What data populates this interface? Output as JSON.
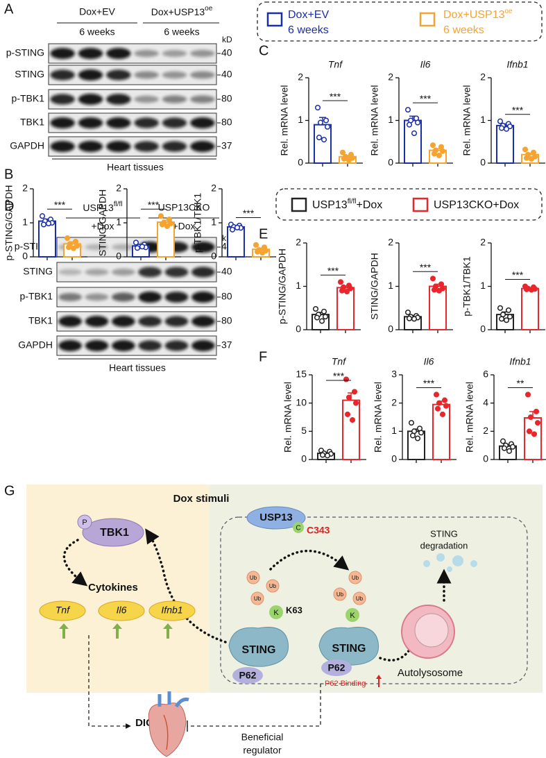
{
  "panel_labels": [
    "A",
    "B",
    "C",
    "D",
    "E",
    "F",
    "G"
  ],
  "blot_a": {
    "groups": [
      {
        "name": "Dox+EV",
        "sub": "6 weeks"
      },
      {
        "name": "Dox+USP13",
        "sup": "oe",
        "sub": "6 weeks"
      }
    ],
    "unit": "kD",
    "rows": [
      {
        "label": "p-STING",
        "kd": 40
      },
      {
        "label": "STING",
        "kd": 40
      },
      {
        "label": "p-TBK1",
        "kd": 80
      },
      {
        "label": "TBK1",
        "kd": 80
      },
      {
        "label": "GAPDH",
        "kd": 37
      }
    ],
    "tissue": "Heart tissues"
  },
  "blot_d": {
    "groups": [
      {
        "name": "USP13",
        "sup": "fl/fl",
        "sub": "+Dox"
      },
      {
        "name": "USP13CKO",
        "sub": "+Dox"
      }
    ],
    "unit": "kD",
    "rows": [
      {
        "label": "p-STING",
        "kd": 40
      },
      {
        "label": "STING",
        "kd": 40
      },
      {
        "label": "p-TBK1",
        "kd": 80
      },
      {
        "label": "TBK1",
        "kd": 80
      },
      {
        "label": "GAPDH",
        "kd": 37
      }
    ],
    "tissue": "Heart tissues"
  },
  "legend_c": [
    {
      "name": "Dox+EV",
      "sub": "6 weeks",
      "color": "#1a2ea8"
    },
    {
      "name": "Dox+USP13",
      "sup": "oe",
      "sub": "6 weeks",
      "color": "#f5a431"
    }
  ],
  "legend_e": [
    {
      "name": "USP13",
      "sup": "fl/fl",
      "tail": "+Dox",
      "color": "#222222"
    },
    {
      "name": "USP13CKO+Dox",
      "color": "#e8262b"
    }
  ],
  "chart_data": [
    {
      "type": "bar",
      "ylabel": "p-STING/GAPDH",
      "categories": [
        null,
        null
      ],
      "values": [
        1.05,
        0.38
      ],
      "errors": [
        0.06,
        0.06
      ],
      "points": [
        [
          1.2,
          1.1,
          1.05,
          1.0,
          0.95,
          0.98
        ],
        [
          0.55,
          0.45,
          0.38,
          0.32,
          0.28,
          0.25
        ]
      ],
      "colors": [
        "#1a2ea8",
        "#f5a431"
      ],
      "ylim": [
        0,
        2
      ],
      "yticks": [
        0,
        1,
        2
      ],
      "significance": "***"
    },
    {
      "type": "bar",
      "ylabel": "STING/GAPDH",
      "categories": [
        null,
        null
      ],
      "values": [
        0.32,
        1.02
      ],
      "errors": [
        0.04,
        0.06
      ],
      "points": [
        [
          0.42,
          0.36,
          0.3,
          0.28,
          0.26,
          0.3
        ],
        [
          1.2,
          1.1,
          1.0,
          0.98,
          0.95,
          0.9
        ]
      ],
      "colors": [
        "#1a2ea8",
        "#f5a431"
      ],
      "ylim": [
        0,
        2
      ],
      "yticks": [
        0,
        1,
        2
      ],
      "significance": "***"
    },
    {
      "type": "bar",
      "ylabel": "p-TBK1/TBK1",
      "categories": [
        null,
        null
      ],
      "values": [
        0.88,
        0.22
      ],
      "errors": [
        0.04,
        0.04
      ],
      "points": [
        [
          0.95,
          0.92,
          0.88,
          0.85,
          0.8,
          0.86
        ],
        [
          0.35,
          0.28,
          0.2,
          0.18,
          0.15,
          0.12
        ]
      ],
      "colors": [
        "#1a2ea8",
        "#f5a431"
      ],
      "ylim": [
        0,
        2
      ],
      "yticks": [
        0,
        1,
        2
      ],
      "significance": "***"
    },
    {
      "type": "bar",
      "title": "Tnf",
      "ylabel": "Rel. mRNA level",
      "categories": [
        null,
        null
      ],
      "values": [
        0.9,
        0.15
      ],
      "errors": [
        0.17,
        0.03
      ],
      "points": [
        [
          1.3,
          1.0,
          0.95,
          0.85,
          0.6,
          0.55
        ],
        [
          0.25,
          0.2,
          0.15,
          0.12,
          0.1,
          0.07
        ]
      ],
      "colors": [
        "#1a2ea8",
        "#f5a431"
      ],
      "ylim": [
        0,
        2
      ],
      "yticks": [
        0,
        1,
        2
      ],
      "significance": "***"
    },
    {
      "type": "bar",
      "title": "Il6",
      "ylabel": "Rel. mRNA level",
      "categories": [
        null,
        null
      ],
      "values": [
        1.0,
        0.3
      ],
      "errors": [
        0.1,
        0.04
      ],
      "points": [
        [
          1.25,
          1.05,
          1.0,
          0.95,
          0.9,
          0.7
        ],
        [
          0.42,
          0.38,
          0.3,
          0.28,
          0.22,
          0.18
        ]
      ],
      "colors": [
        "#1a2ea8",
        "#f5a431"
      ],
      "ylim": [
        0,
        2
      ],
      "yticks": [
        0,
        1,
        2
      ],
      "significance": "***"
    },
    {
      "type": "bar",
      "title": "Ifnb1",
      "ylabel": "Rel. mRNA level",
      "categories": [
        null,
        null
      ],
      "values": [
        0.88,
        0.2
      ],
      "errors": [
        0.04,
        0.03
      ],
      "points": [
        [
          0.98,
          0.92,
          0.88,
          0.86,
          0.82,
          0.8
        ],
        [
          0.32,
          0.25,
          0.2,
          0.15,
          0.12,
          0.1
        ]
      ],
      "colors": [
        "#1a2ea8",
        "#f5a431"
      ],
      "ylim": [
        0,
        2
      ],
      "yticks": [
        0,
        1,
        2
      ],
      "significance": "***"
    },
    {
      "type": "bar",
      "ylabel": "p-STING/GAPDH",
      "categories": [
        null,
        null
      ],
      "values": [
        0.35,
        0.97
      ],
      "errors": [
        0.05,
        0.04
      ],
      "points": [
        [
          0.48,
          0.42,
          0.35,
          0.3,
          0.28,
          0.2
        ],
        [
          1.1,
          1.02,
          0.98,
          0.95,
          0.9,
          0.88
        ]
      ],
      "colors": [
        "#222222",
        "#e8262b"
      ],
      "ylim": [
        0,
        2
      ],
      "yticks": [
        0,
        1,
        2
      ],
      "significance": "***"
    },
    {
      "type": "bar",
      "ylabel": "STING/GAPDH",
      "categories": [
        null,
        null
      ],
      "values": [
        0.3,
        1.0
      ],
      "errors": [
        0.03,
        0.05
      ],
      "points": [
        [
          0.4,
          0.32,
          0.3,
          0.28,
          0.26,
          0.25
        ],
        [
          1.18,
          1.05,
          1.0,
          0.95,
          0.92,
          0.9
        ]
      ],
      "colors": [
        "#222222",
        "#e8262b"
      ],
      "ylim": [
        0,
        2
      ],
      "yticks": [
        0,
        1,
        2
      ],
      "significance": "***"
    },
    {
      "type": "bar",
      "ylabel": "p-TBK1/TBK1",
      "categories": [
        null,
        null
      ],
      "values": [
        0.35,
        0.95
      ],
      "errors": [
        0.06,
        0.02
      ],
      "points": [
        [
          0.5,
          0.45,
          0.35,
          0.3,
          0.25,
          0.22
        ],
        [
          1.0,
          0.98,
          0.95,
          0.94,
          0.93,
          0.92
        ]
      ],
      "colors": [
        "#222222",
        "#e8262b"
      ],
      "ylim": [
        0,
        2
      ],
      "yticks": [
        0,
        1,
        2
      ],
      "significance": "***"
    },
    {
      "type": "bar",
      "title": "Tnf",
      "ylabel": "Rel. mRNA level",
      "categories": [
        null,
        null
      ],
      "values": [
        1.1,
        10.5
      ],
      "errors": [
        0.2,
        1.3
      ],
      "points": [
        [
          1.6,
          1.4,
          1.1,
          1.0,
          0.8,
          0.7
        ],
        [
          14.2,
          12.0,
          11.0,
          10.0,
          8.0,
          7.0
        ]
      ],
      "colors": [
        "#222222",
        "#e8262b"
      ],
      "ylim": [
        0,
        15
      ],
      "yticks": [
        0,
        5,
        10,
        15
      ],
      "significance": "***"
    },
    {
      "type": "bar",
      "title": "Il6",
      "ylabel": "Rel. mRNA level",
      "categories": [
        null,
        null
      ],
      "values": [
        1.0,
        1.95
      ],
      "errors": [
        0.08,
        0.12
      ],
      "points": [
        [
          1.3,
          1.1,
          1.0,
          0.95,
          0.85,
          0.75
        ],
        [
          2.3,
          2.1,
          2.0,
          1.9,
          1.8,
          1.6
        ]
      ],
      "colors": [
        "#222222",
        "#e8262b"
      ],
      "ylim": [
        0,
        3
      ],
      "yticks": [
        0,
        1,
        2,
        3
      ],
      "significance": "***"
    },
    {
      "type": "bar",
      "title": "Ifnb1",
      "ylabel": "Rel. mRNA level",
      "categories": [
        null,
        null
      ],
      "values": [
        0.95,
        2.95
      ],
      "errors": [
        0.12,
        0.45
      ],
      "points": [
        [
          1.3,
          1.1,
          1.0,
          0.9,
          0.8,
          0.6
        ],
        [
          4.6,
          3.4,
          3.0,
          2.6,
          2.0,
          1.8
        ]
      ],
      "colors": [
        "#222222",
        "#e8262b"
      ],
      "ylim": [
        0,
        6
      ],
      "yticks": [
        0,
        2,
        4,
        6
      ],
      "significance": "**"
    }
  ],
  "diagram": {
    "stimulus": "Dox stimuli",
    "tbk1": "TBK1",
    "p": "P",
    "cytokines": "Cytokines",
    "genes": [
      "Tnf",
      "Il6",
      "Ifnb1"
    ],
    "usp13": "USP13",
    "c": "C",
    "site": "C343",
    "ub": "Ub",
    "k": "K",
    "k63": "K63",
    "sting": "STING",
    "p62": "P62",
    "binding": "P62 Binding",
    "degradation": [
      "STING",
      "degradation"
    ],
    "autolysosome": "Autolysosome",
    "dic": "DIC",
    "regulator": [
      "Beneficial",
      "regulator"
    ]
  }
}
